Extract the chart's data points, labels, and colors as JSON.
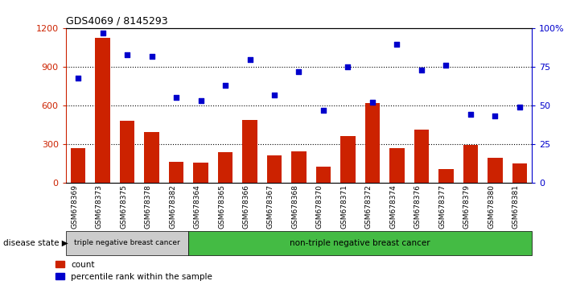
{
  "title": "GDS4069 / 8145293",
  "samples": [
    "GSM678369",
    "GSM678373",
    "GSM678375",
    "GSM678378",
    "GSM678382",
    "GSM678364",
    "GSM678365",
    "GSM678366",
    "GSM678367",
    "GSM678368",
    "GSM678370",
    "GSM678371",
    "GSM678372",
    "GSM678374",
    "GSM678376",
    "GSM678377",
    "GSM678379",
    "GSM678380",
    "GSM678381"
  ],
  "counts": [
    270,
    1130,
    480,
    390,
    160,
    155,
    235,
    490,
    210,
    240,
    120,
    360,
    620,
    270,
    410,
    105,
    295,
    190,
    150
  ],
  "percentiles": [
    68,
    97,
    83,
    82,
    55,
    53,
    63,
    80,
    57,
    72,
    47,
    75,
    52,
    90,
    73,
    76,
    44,
    43,
    49
  ],
  "group1_count": 5,
  "group1_label": "triple negative breast cancer",
  "group2_label": "non-triple negative breast cancer",
  "bar_color": "#cc2200",
  "dot_color": "#0000cc",
  "ylim_left": [
    0,
    1200
  ],
  "ylim_right": [
    0,
    100
  ],
  "yticks_left": [
    0,
    300,
    600,
    900,
    1200
  ],
  "yticks_right": [
    0,
    25,
    50,
    75,
    100
  ],
  "yticklabels_right": [
    "0",
    "25",
    "50",
    "75",
    "100%"
  ],
  "grid_lines": [
    300,
    600,
    900
  ],
  "disease_state_label": "disease state",
  "legend_count_label": "count",
  "legend_percentile_label": "percentile rank within the sample",
  "group1_bg": "#cccccc",
  "group2_bg": "#44bb44"
}
